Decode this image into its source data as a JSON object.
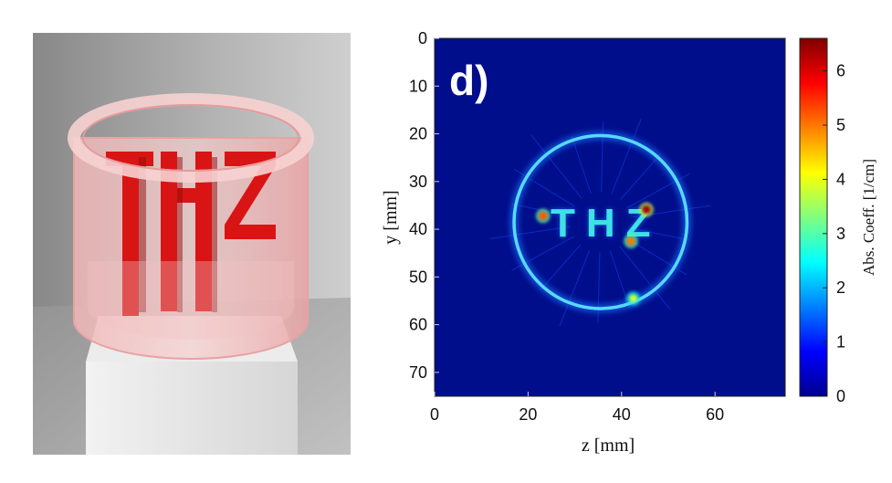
{
  "render": {
    "label": "THZ",
    "colors": {
      "letters": "#d91414",
      "cylinder": "#f2b8b8",
      "background": "#a9a9a9",
      "pedestal": "#e4e4e4"
    }
  },
  "chart_data": {
    "type": "heatmap",
    "panel_label": "d)",
    "xlabel": "z [mm]",
    "ylabel": "y [mm]",
    "xlim": [
      0,
      75
    ],
    "ylim": [
      75,
      0
    ],
    "xticks": [
      0,
      20,
      40,
      60
    ],
    "yticks": [
      0,
      10,
      20,
      30,
      40,
      50,
      60,
      70
    ],
    "colorbar": {
      "label": "Abs. Coeff. [1/cm]",
      "range": [
        0,
        6.6
      ],
      "ticks": [
        0,
        1,
        2,
        3,
        4,
        5,
        6
      ],
      "colormap": "jet"
    },
    "features": {
      "ring": {
        "center_z": 35.5,
        "center_y": 38.5,
        "radius": 18.5,
        "value": 2.0
      },
      "letters": {
        "text": "THZ",
        "center_z": 35.5,
        "center_y": 38.5,
        "value": 2.5
      },
      "hotspots": [
        {
          "z": 23.2,
          "y": 37.2,
          "value": 5.2
        },
        {
          "z": 45.3,
          "y": 35.9,
          "value": 6.3
        },
        {
          "z": 42.0,
          "y": 42.5,
          "value": 5.0
        },
        {
          "z": 42.5,
          "y": 54.5,
          "value": 3.8
        }
      ],
      "background_value": 0.05
    }
  }
}
